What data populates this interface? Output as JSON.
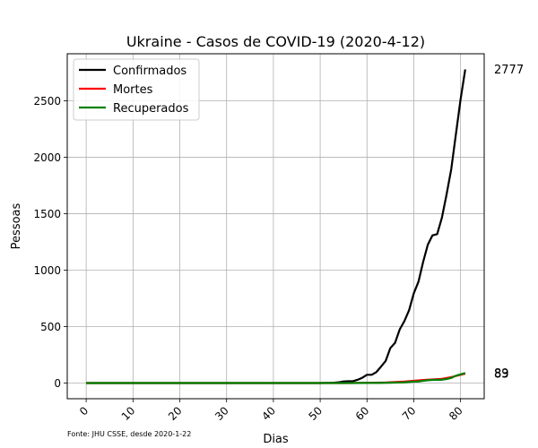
{
  "chart_data": {
    "type": "line",
    "title": "Ukraine - Casos de COVID-19 (2020-4-12)",
    "xlabel": "Dias",
    "ylabel": "Pessoas",
    "source_note": "Fonte: JHU CSSE, desde 2020-1-22",
    "xlim": [
      -4.05,
      85.05
    ],
    "ylim": [
      -138.85,
      2915.85
    ],
    "xticks": [
      0,
      10,
      20,
      30,
      40,
      50,
      60,
      70,
      80
    ],
    "yticks": [
      0,
      500,
      1000,
      1500,
      2000,
      2500
    ],
    "grid": true,
    "legend_position": "top-left",
    "end_labels": [
      "2777",
      "89",
      "83"
    ],
    "series": [
      {
        "name": "Confirmados",
        "color": "#000000",
        "x": [
          0,
          50,
          51,
          52,
          53,
          54,
          55,
          56,
          57,
          58,
          59,
          60,
          61,
          62,
          63,
          64,
          65,
          66,
          67,
          68,
          69,
          70,
          71,
          72,
          73,
          74,
          75,
          76,
          77,
          78,
          79,
          80,
          81
        ],
        "values": [
          0,
          0,
          1,
          1,
          3,
          7,
          14,
          16,
          16,
          29,
          47,
          73,
          73,
          97,
          145,
          196,
          310,
          356,
          475,
          549,
          645,
          794,
          897,
          1072,
          1225,
          1308,
          1319,
          1462,
          1668,
          1892,
          2203,
          2511,
          2777
        ]
      },
      {
        "name": "Mortes",
        "color": "#ff0000",
        "x": [
          0,
          50,
          55,
          58,
          60,
          62,
          64,
          66,
          68,
          70,
          72,
          74,
          76,
          78,
          80,
          81
        ],
        "values": [
          0,
          0,
          0,
          1,
          2,
          3,
          5,
          9,
          13,
          20,
          27,
          32,
          37,
          52,
          73,
          83
        ]
      },
      {
        "name": "Recuperados",
        "color": "#008000",
        "x": [
          0,
          50,
          55,
          60,
          62,
          64,
          66,
          68,
          70,
          71,
          72,
          73,
          74,
          75,
          76,
          77,
          78,
          79,
          80,
          81
        ],
        "values": [
          0,
          0,
          0,
          1,
          1,
          2,
          4,
          6,
          13,
          14,
          20,
          25,
          28,
          29,
          29,
          35,
          45,
          65,
          77,
          89
        ]
      }
    ]
  }
}
